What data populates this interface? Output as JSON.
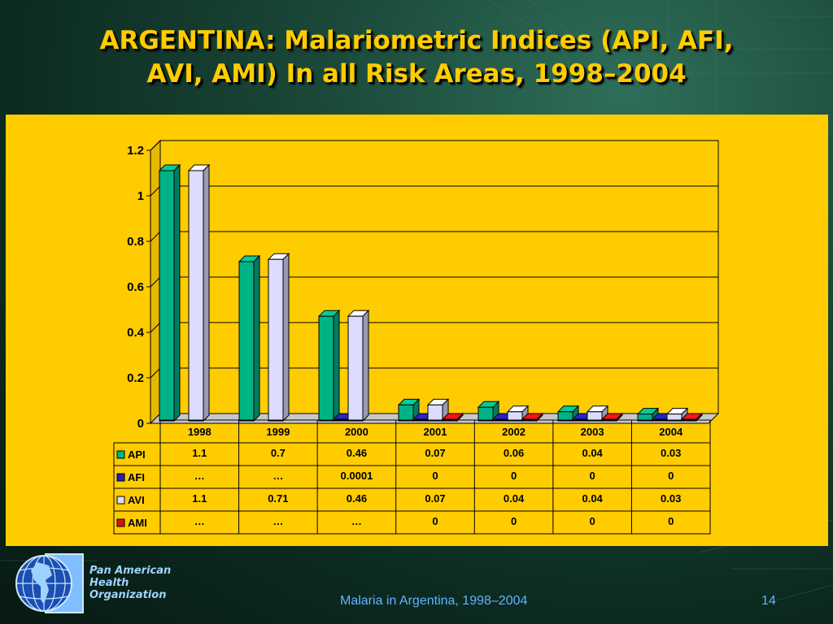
{
  "slide": {
    "title_line1": "ARGENTINA: Malariometric Indices (API, AFI,",
    "title_line2": "AVI, AMI) In all Risk Areas, 1998–2004",
    "org_line1": "Pan American",
    "org_line2": "Health",
    "org_line3": "Organization",
    "caption": "Malaria in Argentina, 1998–2004",
    "page_number": "14"
  },
  "colors": {
    "title": "#ffcc00",
    "panel": "#ffcc00",
    "api": "#00b386",
    "afi": "#2222aa",
    "avi": "#dcdcff",
    "ami": "#dd1111"
  },
  "chart_data": {
    "type": "bar",
    "categories": [
      "1998",
      "1999",
      "2000",
      "2001",
      "2002",
      "2003",
      "2004"
    ],
    "ylim": [
      0,
      1.2
    ],
    "yticks": [
      "0",
      "0.2",
      "0.4",
      "0.6",
      "0.8",
      "1",
      "1.2"
    ],
    "grid": true,
    "series": [
      {
        "name": "API",
        "values": [
          1.1,
          0.7,
          0.46,
          0.07,
          0.06,
          0.04,
          0.03
        ],
        "table": [
          "1.1",
          "0.7",
          "0.46",
          "0.07",
          "0.06",
          "0.04",
          "0.03"
        ]
      },
      {
        "name": "AFI",
        "values": [
          null,
          null,
          0.0001,
          0,
          0,
          0,
          0
        ],
        "table": [
          "…",
          "…",
          "0.0001",
          "0",
          "0",
          "0",
          "0"
        ]
      },
      {
        "name": "AVI",
        "values": [
          1.1,
          0.71,
          0.46,
          0.07,
          0.04,
          0.04,
          0.03
        ],
        "table": [
          "1.1",
          "0.71",
          "0.46",
          "0.07",
          "0.04",
          "0.04",
          "0.03"
        ]
      },
      {
        "name": "AMI",
        "values": [
          null,
          null,
          null,
          0,
          0,
          0,
          0
        ],
        "table": [
          "…",
          "…",
          "…",
          "0",
          "0",
          "0",
          "0"
        ]
      }
    ]
  }
}
